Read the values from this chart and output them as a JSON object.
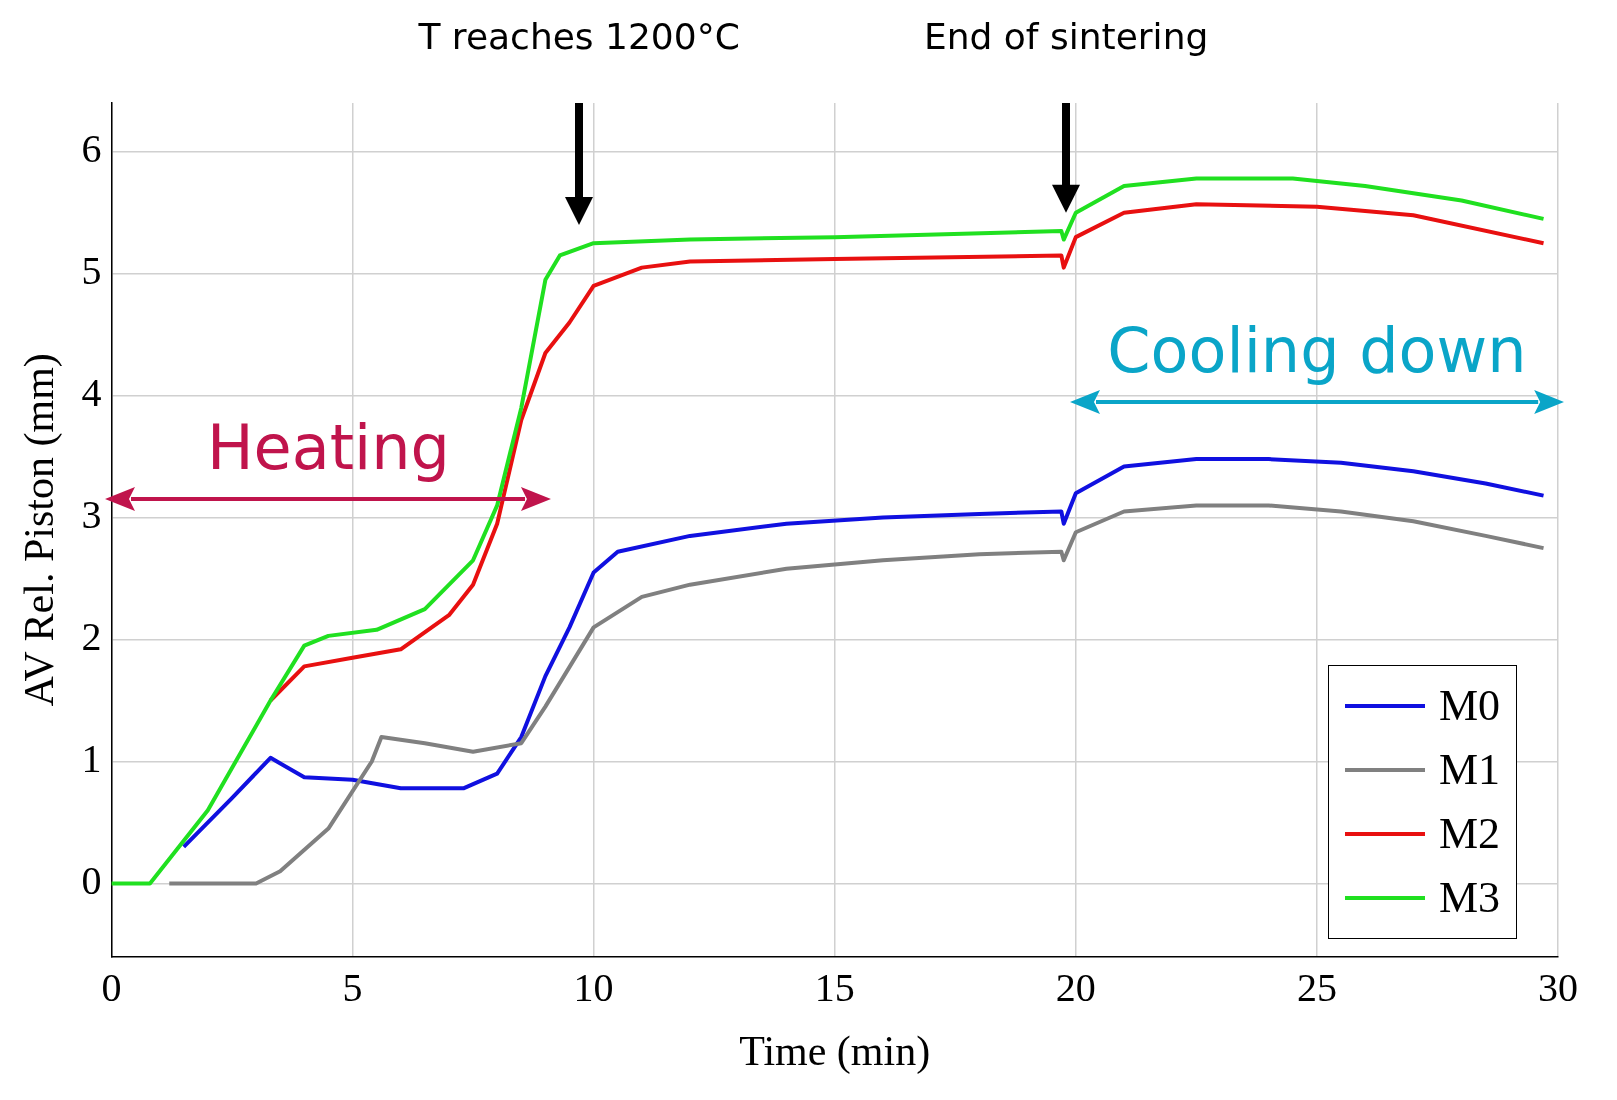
{
  "chart_data": {
    "type": "line",
    "xlabel": "Time (min)",
    "ylabel": "AV Rel. Piston (mm)",
    "xlim": [
      0,
      30
    ],
    "xticks": [
      0,
      5,
      10,
      15,
      20,
      25,
      30
    ],
    "ylim": [
      -0.6,
      6.4
    ],
    "yticks": [
      0,
      1,
      2,
      3,
      4,
      5,
      6
    ],
    "grid": true,
    "legend": "bottom right",
    "marker": "none",
    "line_style": "solid",
    "annotations": [
      "T reaches 1200°C",
      "End of sintering",
      "Heating",
      "Cooling down"
    ],
    "series": [
      {
        "name": "M0",
        "color": "#1010e0",
        "x": [
          1.5,
          2.5,
          3.3,
          4,
          5,
          6,
          7.3,
          8,
          8.5,
          9,
          9.5,
          10,
          10.5,
          12,
          14,
          16,
          18,
          19.7,
          19.75,
          20,
          21,
          22.5,
          24,
          25.5,
          27,
          28.5,
          29.7
        ],
        "values": [
          0.3,
          0.7,
          1.03,
          0.87,
          0.85,
          0.78,
          0.78,
          0.9,
          1.2,
          1.7,
          2.1,
          2.55,
          2.72,
          2.85,
          2.95,
          3,
          3.03,
          3.05,
          2.95,
          3.2,
          3.42,
          3.48,
          3.48,
          3.45,
          3.38,
          3.28,
          3.18
        ]
      },
      {
        "name": "M1",
        "color": "#808080",
        "x": [
          1.2,
          3,
          3.5,
          4.5,
          5.4,
          5.6,
          6.5,
          7.5,
          8.5,
          9,
          10,
          11,
          12,
          14,
          16,
          18,
          19.7,
          19.75,
          20,
          21,
          22.5,
          24,
          25.5,
          27,
          28.5,
          29.7
        ],
        "values": [
          0,
          0,
          0.1,
          0.45,
          1,
          1.2,
          1.15,
          1.08,
          1.15,
          1.45,
          2.1,
          2.35,
          2.45,
          2.58,
          2.65,
          2.7,
          2.72,
          2.65,
          2.88,
          3.05,
          3.1,
          3.1,
          3.05,
          2.97,
          2.85,
          2.75
        ]
      },
      {
        "name": "M2",
        "color": "#e81010",
        "x": [
          3.3,
          4,
          5,
          6,
          7,
          7.5,
          8,
          8.5,
          9,
          9.5,
          10,
          11,
          12,
          15,
          19.7,
          19.75,
          20,
          21,
          22.5,
          25,
          27,
          29.7
        ],
        "values": [
          1.5,
          1.78,
          1.85,
          1.92,
          2.2,
          2.45,
          2.95,
          3.8,
          4.35,
          4.6,
          4.9,
          5.05,
          5.1,
          5.12,
          5.15,
          5.05,
          5.3,
          5.5,
          5.57,
          5.55,
          5.48,
          5.25
        ]
      },
      {
        "name": "M3",
        "color": "#20e020",
        "x": [
          0,
          0.8,
          2,
          3.3,
          4,
          4.5,
          5.5,
          6.5,
          7.5,
          8,
          8.5,
          9,
          9.3,
          10,
          12,
          15,
          19.7,
          19.75,
          20,
          21,
          22.5,
          24.5,
          26,
          28,
          29.7
        ],
        "values": [
          0,
          0,
          0.6,
          1.5,
          1.95,
          2.03,
          2.08,
          2.25,
          2.65,
          3.1,
          3.9,
          4.95,
          5.15,
          5.25,
          5.28,
          5.3,
          5.35,
          5.28,
          5.5,
          5.72,
          5.78,
          5.78,
          5.72,
          5.6,
          5.45
        ]
      }
    ]
  }
}
